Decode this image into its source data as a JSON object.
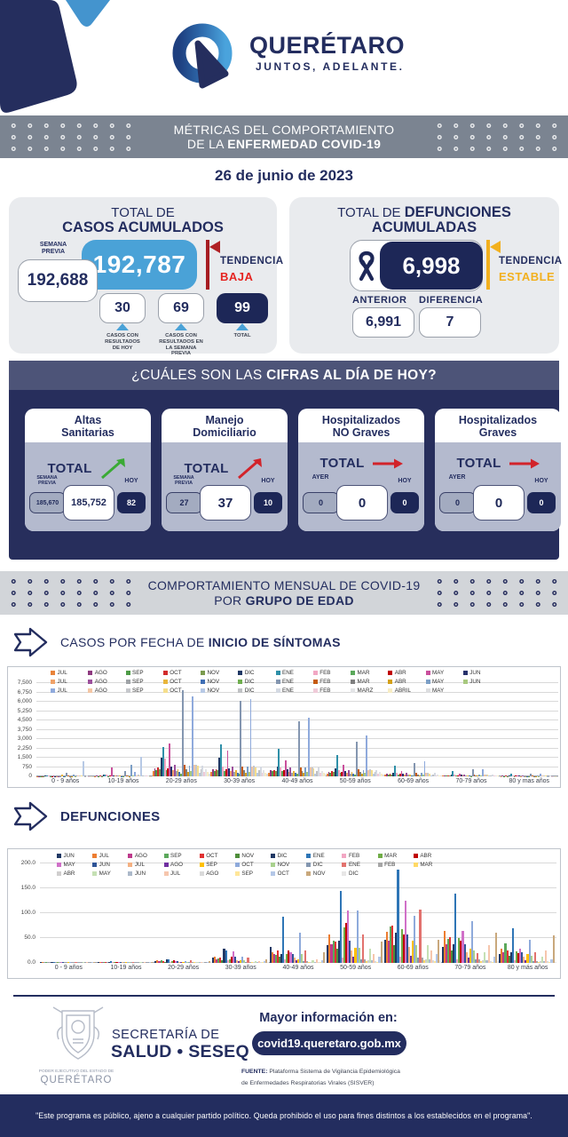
{
  "colors": {
    "navy": "#232d5f",
    "light_blue": "#4aa2d7",
    "red": "#d2232a",
    "dark_red": "#a61c22",
    "yellow": "#f2b01e",
    "green": "#3aaa35",
    "panel": "#272e5c",
    "panel_head": "#4d5478"
  },
  "header": {
    "brand": "QUERÉTARO",
    "slogan": "JUNTOS, ADELANTE."
  },
  "banner_metricas": {
    "line1": "MÉTRICAS DEL COMPORTAMIENTO",
    "line2_prefix": "DE LA ",
    "line2_bold": "ENFERMEDAD COVID-19"
  },
  "date_label": "26 de junio de 2023",
  "casos_card": {
    "title1": "TOTAL DE",
    "title2": "CASOS ACUMULADOS",
    "prev_label": "SEMANA PREVIA",
    "prev_value": "192,688",
    "main_value": "192,787",
    "trend_label": "TENDENCIA",
    "trend_value": "BAJA",
    "boxes": [
      {
        "value": "30",
        "label": "CASOS CON RESULTADOS DE HOY"
      },
      {
        "value": "69",
        "label": "CASOS CON RESULTADOS EN LA SEMANA PREVIA"
      },
      {
        "value": "99",
        "label": "TOTAL"
      }
    ]
  },
  "defunciones_card": {
    "title1": "TOTAL DE ",
    "title1_bold": "DEFUNCIONES",
    "title2": "ACUMULADAS",
    "main_value": "6,998",
    "trend_label": "TENDENCIA",
    "trend_value": "ESTABLE",
    "anterior_label": "ANTERIOR",
    "anterior_value": "6,991",
    "diferencia_label": "DIFERENCIA",
    "diferencia_value": "7"
  },
  "cifras": {
    "header_prefix": "¿CUÁLES SON LAS ",
    "header_bold": "CIFRAS AL DÍA DE HOY",
    "header_suffix": "?",
    "cards": [
      {
        "title1": "Altas",
        "title2": "Sanitarias",
        "total_label": "TOTAL",
        "trend": "up-green",
        "left_label": "SEMANA PREVIA",
        "left_value": "185,670",
        "center_value": "185,752",
        "right_label": "HOY",
        "right_value": "82"
      },
      {
        "title1": "Manejo",
        "title2": "Domiciliario",
        "total_label": "TOTAL",
        "trend": "up-red",
        "left_label": "SEMANA PREVIA",
        "left_value": "27",
        "center_value": "37",
        "right_label": "HOY",
        "right_value": "10"
      },
      {
        "title1": "Hospitalizados",
        "title2": "NO Graves",
        "total_label": "TOTAL",
        "trend": "right-red",
        "left_label": "AYER",
        "left_value": "0",
        "center_value": "0",
        "right_label": "HOY",
        "right_value": "0"
      },
      {
        "title1": "Hospitalizados",
        "title2": "Graves",
        "total_label": "TOTAL",
        "trend": "right-red",
        "left_label": "AYER",
        "left_value": "0",
        "center_value": "0",
        "right_label": "HOY",
        "right_value": "0"
      }
    ]
  },
  "banner_edad": {
    "line1": "COMPORTAMIENTO MENSUAL DE COVID-19",
    "line2_prefix": "POR ",
    "line2_bold": "GRUPO DE EDAD"
  },
  "sections": {
    "casos_prefix": "CASOS POR FECHA DE ",
    "casos_bold": "INICIO  DE SÍNTOMAS",
    "defunciones": "DEFUNCIONES"
  },
  "chart_data": [
    {
      "type": "bar",
      "title": "CASOS POR FECHA DE INICIO DE SÍNTOMAS",
      "ylim": [
        0,
        7500
      ],
      "ylabels": [
        "0",
        "750",
        "1,500",
        "2,250",
        "3,000",
        "3,750",
        "4,500",
        "5,250",
        "6,000",
        "6,750",
        "7,500"
      ],
      "legend_position": "top",
      "grid": true,
      "categories": [
        "0 - 9 años",
        "10-19 años",
        "20-29 años",
        "30-39 años",
        "40-49 años",
        "50-59 años",
        "60-69 años",
        "70-79 años",
        "80 y mas años"
      ],
      "series_legend": [
        {
          "label": "JUL",
          "color": "#E8833A"
        },
        {
          "label": "AGO",
          "color": "#8E3A80"
        },
        {
          "label": "SEP",
          "color": "#4E9B47"
        },
        {
          "label": "OCT",
          "color": "#D22B2B"
        },
        {
          "label": "NOV",
          "color": "#7A9A4E"
        },
        {
          "label": "DIC",
          "color": "#1F3864"
        },
        {
          "label": "ENE",
          "color": "#2E8FA8"
        },
        {
          "label": "FEB",
          "color": "#F2A7C3"
        },
        {
          "label": "MAR",
          "color": "#5BA85B"
        },
        {
          "label": "ABR",
          "color": "#C00000"
        },
        {
          "label": "MAY",
          "color": "#C94F9C"
        },
        {
          "label": "JUN",
          "color": "#26316B"
        },
        {
          "label": "JUL",
          "color": "#F0A268"
        },
        {
          "label": "AGO",
          "color": "#9C4F9C"
        },
        {
          "label": "SEP",
          "color": "#9FA3A7"
        },
        {
          "label": "OCT",
          "color": "#E8B53A"
        },
        {
          "label": "NOV",
          "color": "#3F6FB5"
        },
        {
          "label": "DIC",
          "color": "#6FAE4E"
        },
        {
          "label": "ENE",
          "color": "#8496B0"
        },
        {
          "label": "FEB",
          "color": "#C55A11"
        },
        {
          "label": "MAR",
          "color": "#7F7F7F"
        },
        {
          "label": "ABR",
          "color": "#D4A017"
        },
        {
          "label": "MAY",
          "color": "#7C9FC6"
        },
        {
          "label": "JUN",
          "color": "#A8C97F"
        },
        {
          "label": "JUL",
          "color": "#8FAADC"
        },
        {
          "label": "AGO",
          "color": "#F3C6A5"
        },
        {
          "label": "SEP",
          "color": "#C6C8CC"
        },
        {
          "label": "OCT",
          "color": "#F5DE8C"
        },
        {
          "label": "NOV",
          "color": "#B7C9E5"
        },
        {
          "label": "DIC",
          "color": "#BFC1C4"
        },
        {
          "label": "ENE",
          "color": "#D4D9E2"
        },
        {
          "label": "FEB",
          "color": "#F0CBD8"
        },
        {
          "label": "MARZ",
          "color": "#E3E4E6"
        },
        {
          "label": "ABRIL",
          "color": "#F7EDC4"
        },
        {
          "label": "MAY",
          "color": "#DCDDDF"
        }
      ],
      "groups": [
        [
          15,
          25,
          20,
          25,
          20,
          45,
          70,
          50,
          20,
          25,
          80,
          30,
          20,
          35,
          25,
          150,
          15,
          12,
          300,
          40,
          25,
          15,
          120,
          25,
          90,
          55,
          60,
          50,
          1250,
          35,
          55,
          22,
          30,
          18,
          14
        ],
        [
          25,
          50,
          35,
          45,
          35,
          110,
          160,
          120,
          35,
          45,
          700,
          70,
          40,
          90,
          50,
          80,
          35,
          25,
          450,
          80,
          45,
          30,
          950,
          45,
          380,
          100,
          110,
          95,
          1600,
          70,
          105,
          40,
          60,
          35,
          25
        ],
        [
          414,
          621,
          518,
          690,
          552,
          1518,
          2346,
          1449,
          518,
          621,
          2622,
          759,
          483,
          897,
          414,
          580,
          331,
          242,
          6900,
          931,
          538,
          331,
          883,
          428,
          6417,
          897,
          952,
          842,
          304,
          538,
          883,
          338,
          580,
          331,
          242
        ],
        [
          330,
          560,
          455,
          600,
          490,
          1500,
          2600,
          800,
          455,
          545,
          2100,
          670,
          420,
          790,
          365,
          510,
          290,
          215,
          6100,
          820,
          475,
          290,
          775,
          375,
          6200,
          790,
          840,
          740,
          265,
          475,
          775,
          295,
          510,
          290,
          215
        ],
        [
          290,
          490,
          400,
          525,
          430,
          800,
          2250,
          690,
          400,
          480,
          1300,
          590,
          370,
          690,
          320,
          450,
          255,
          185,
          4450,
          720,
          420,
          255,
          680,
          330,
          4700,
          695,
          735,
          650,
          235,
          420,
          680,
          260,
          450,
          255,
          185
        ],
        [
          225,
          380,
          310,
          405,
          335,
          630,
          1700,
          535,
          310,
          370,
          900,
          455,
          285,
          535,
          245,
          350,
          195,
          145,
          2800,
          555,
          325,
          195,
          525,
          255,
          3300,
          535,
          570,
          500,
          180,
          325,
          525,
          200,
          350,
          195,
          145
        ],
        [
          110,
          185,
          150,
          200,
          165,
          320,
          870,
          265,
          150,
          180,
          460,
          225,
          140,
          265,
          120,
          170,
          95,
          70,
          1100,
          275,
          160,
          95,
          260,
          125,
          1200,
          265,
          280,
          245,
          90,
          160,
          260,
          100,
          170,
          95,
          70
        ],
        [
          55,
          95,
          75,
          100,
          80,
          160,
          430,
          130,
          75,
          90,
          230,
          110,
          70,
          130,
          60,
          85,
          48,
          36,
          560,
          135,
          80,
          48,
          128,
          62,
          600,
          130,
          140,
          120,
          44,
          80,
          128,
          49,
          85,
          48,
          36
        ],
        [
          23,
          39,
          31,
          41,
          33,
          66,
          180,
          55,
          31,
          37,
          95,
          46,
          29,
          55,
          25,
          35,
          20,
          15,
          230,
          57,
          33,
          20,
          53,
          26,
          250,
          55,
          58,
          50,
          18,
          33,
          53,
          20,
          35,
          20,
          15
        ]
      ]
    },
    {
      "type": "bar",
      "title": "DEFUNCIONES",
      "ylim": [
        0,
        200
      ],
      "ylabels": [
        "0.0",
        "50.0",
        "100.0",
        "150.0",
        "200.0"
      ],
      "legend_position": "top",
      "grid": true,
      "categories": [
        "0 - 9 años",
        "10-19 años",
        "20-29 años",
        "30-39 años",
        "40-49 años",
        "50-59 años",
        "60-69 años",
        "70-79 años",
        "80 y más años"
      ],
      "series_legend": [
        {
          "label": "JUN",
          "color": "#1F3864"
        },
        {
          "label": "JUL",
          "color": "#ED7D31"
        },
        {
          "label": "AGO",
          "color": "#BE3A8C"
        },
        {
          "label": "SEP",
          "color": "#5BA85B"
        },
        {
          "label": "OCT",
          "color": "#E03131"
        },
        {
          "label": "NOV",
          "color": "#4E8E3A"
        },
        {
          "label": "DIC",
          "color": "#203864"
        },
        {
          "label": "ENE",
          "color": "#2E75B6"
        },
        {
          "label": "FEB",
          "color": "#F2A7C3"
        },
        {
          "label": "MAR",
          "color": "#70AD47"
        },
        {
          "label": "ABR",
          "color": "#C00000"
        },
        {
          "label": "MAY",
          "color": "#D070C8"
        },
        {
          "label": "JUN",
          "color": "#2F5597"
        },
        {
          "label": "JUL",
          "color": "#F4B183"
        },
        {
          "label": "AGO",
          "color": "#7030A0"
        },
        {
          "label": "SEP",
          "color": "#FFC000"
        },
        {
          "label": "OCT",
          "color": "#8EAADB"
        },
        {
          "label": "NOV",
          "color": "#A9D18E"
        },
        {
          "label": "DIC",
          "color": "#8497B0"
        },
        {
          "label": "ENE",
          "color": "#E2726E"
        },
        {
          "label": "FEB",
          "color": "#A6A6A6"
        },
        {
          "label": "MAR",
          "color": "#FFD966"
        },
        {
          "label": "ABR",
          "color": "#D0CECE"
        },
        {
          "label": "MAY",
          "color": "#C5E0B4"
        },
        {
          "label": "JUN",
          "color": "#ACB9CA"
        },
        {
          "label": "JUL",
          "color": "#F6C6AD"
        },
        {
          "label": "AGO",
          "color": "#D9D9D9"
        },
        {
          "label": "SEP",
          "color": "#FFE699"
        },
        {
          "label": "OCT",
          "color": "#B4C7E7"
        },
        {
          "label": "NOV",
          "color": "#C9A87C"
        },
        {
          "label": "DIC",
          "color": "#E7E6E6"
        }
      ],
      "groups": [
        [
          1,
          1,
          0,
          1,
          0,
          0,
          1,
          2,
          0,
          1,
          0,
          1,
          1,
          0,
          0,
          1,
          1,
          0,
          0,
          1,
          0,
          0,
          0,
          1,
          0,
          1,
          0,
          0,
          1,
          1,
          0
        ],
        [
          1,
          2,
          1,
          1,
          1,
          0,
          2,
          3,
          1,
          1,
          1,
          2,
          1,
          1,
          0,
          1,
          1,
          1,
          0,
          2,
          0,
          0,
          0,
          1,
          0,
          1,
          0,
          0,
          1,
          2,
          0
        ],
        [
          4,
          6,
          3,
          5,
          4,
          2,
          7,
          8,
          2,
          3,
          5,
          4,
          3,
          2,
          1,
          2,
          3,
          2,
          1,
          5,
          1,
          1,
          1,
          2,
          1,
          2,
          1,
          0,
          2,
          3,
          1
        ],
        [
          10,
          13,
          8,
          9,
          10,
          6,
          29,
          25,
          5,
          8,
          12,
          23,
          12,
          6,
          3,
          5,
          13,
          6,
          2,
          10,
          2,
          1,
          1,
          3,
          1,
          4,
          1,
          1,
          3,
          8,
          1
        ],
        [
          33,
          22,
          18,
          16,
          25,
          12,
          18,
          92,
          8,
          18,
          25,
          22,
          17,
          10,
          5,
          8,
          60,
          18,
          4,
          25,
          4,
          2,
          2,
          5,
          2,
          8,
          2,
          1,
          5,
          22,
          2
        ],
        [
          35,
          57,
          38,
          45,
          43,
          28,
          45,
          145,
          10,
          72,
          80,
          105,
          45,
          25,
          12,
          30,
          105,
          30,
          8,
          57,
          8,
          4,
          5,
          28,
          5,
          18,
          4,
          2,
          12,
          43,
          4
        ],
        [
          46,
          62,
          45,
          73,
          75,
          35,
          60,
          188,
          12,
          68,
          57,
          125,
          58,
          32,
          15,
          45,
          95,
          35,
          10,
          107,
          10,
          5,
          8,
          35,
          8,
          25,
          5,
          3,
          18,
          47,
          5
        ],
        [
          32,
          65,
          38,
          48,
          52,
          25,
          38,
          140,
          8,
          50,
          45,
          64,
          38,
          22,
          10,
          28,
          84,
          25,
          7,
          20,
          7,
          4,
          5,
          22,
          5,
          35,
          4,
          2,
          12,
          60,
          3
        ],
        [
          18,
          28,
          22,
          40,
          25,
          15,
          22,
          69,
          5,
          24,
          20,
          28,
          22,
          12,
          6,
          18,
          46,
          15,
          4,
          22,
          4,
          2,
          3,
          12,
          3,
          25,
          3,
          1,
          8,
          55,
          2
        ]
      ]
    }
  ],
  "footer": {
    "secretaria_line1": "SECRETARÍA DE",
    "secretaria_line2": "SALUD • SESEQ",
    "poder": "PODER EJECUTIVO DEL ESTADO DE",
    "estado": "QUERÉTARO",
    "info_label": "Mayor información en:",
    "url": "covid19.queretaro.gob.mx",
    "fuente_bold": "FUENTE:",
    "fuente_line1": " Plataforma Sistema  de Vigilancia Epidemiológica",
    "fuente_line2": "de Enfermedades Respiratorias Virales (SISVER)"
  },
  "disclaimer": "\"Este programa es público, ajeno a cualquier partido político. Queda prohibido el uso para fines distintos a los establecidos en el programa\"."
}
